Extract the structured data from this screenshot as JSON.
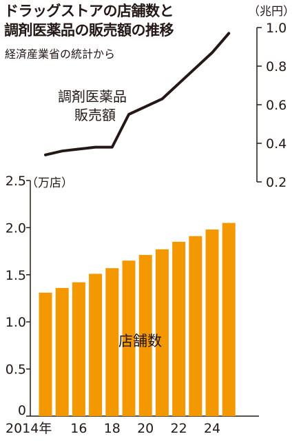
{
  "title_lines": [
    "ドラッグストアの店舗数と",
    "調剤医薬品の販売額の推移"
  ],
  "source": "経済産業省の統計から",
  "colors": {
    "bar": "#F39800",
    "line": "#231815",
    "text": "#231815"
  },
  "chart_data": [
    {
      "type": "line",
      "series_label_lines": [
        "調剤医薬品",
        "販売額"
      ],
      "unit": "（兆円）",
      "y_axis_side": "right",
      "ylim": [
        0.2,
        1.0
      ],
      "yticks": [
        0.2,
        0.4,
        0.6,
        0.8,
        1.0
      ],
      "ytick_labels": [
        "0.2",
        "0.4",
        "0.6",
        "0.8",
        "1.0"
      ],
      "points": [
        {
          "x": 2014,
          "y": 0.34
        },
        {
          "x": 2015,
          "y": 0.36
        },
        {
          "x": 2016,
          "y": 0.37
        },
        {
          "x": 2017,
          "y": 0.38
        },
        {
          "x": 2018,
          "y": 0.38
        },
        {
          "x": 2019,
          "y": 0.55
        },
        {
          "x": 2020,
          "y": 0.59
        },
        {
          "x": 2021,
          "y": 0.63
        },
        {
          "x": 2022,
          "y": 0.71
        },
        {
          "x": 2023,
          "y": 0.79
        },
        {
          "x": 2024,
          "y": 0.87
        },
        {
          "x": 2025,
          "y": 0.97
        }
      ]
    },
    {
      "type": "bar",
      "series_label": "店舗数",
      "unit": "（万店）",
      "y_axis_side": "left",
      "ylim": [
        0,
        2.5
      ],
      "yticks": [
        0,
        0.5,
        1.0,
        1.5,
        2.0,
        2.5
      ],
      "ytick_labels": [
        "0",
        "0.5",
        "1.0",
        "1.5",
        "2.0",
        "2.5"
      ],
      "categories": [
        2014,
        2015,
        2016,
        2017,
        2018,
        2019,
        2020,
        2021,
        2022,
        2023,
        2024,
        2025
      ],
      "xtick_labels": [
        "2014年",
        "",
        "16",
        "",
        "18",
        "",
        "20",
        "",
        "22",
        "",
        "24",
        ""
      ],
      "values": [
        1.31,
        1.36,
        1.42,
        1.51,
        1.57,
        1.65,
        1.71,
        1.77,
        1.85,
        1.91,
        1.98,
        2.05
      ]
    }
  ]
}
